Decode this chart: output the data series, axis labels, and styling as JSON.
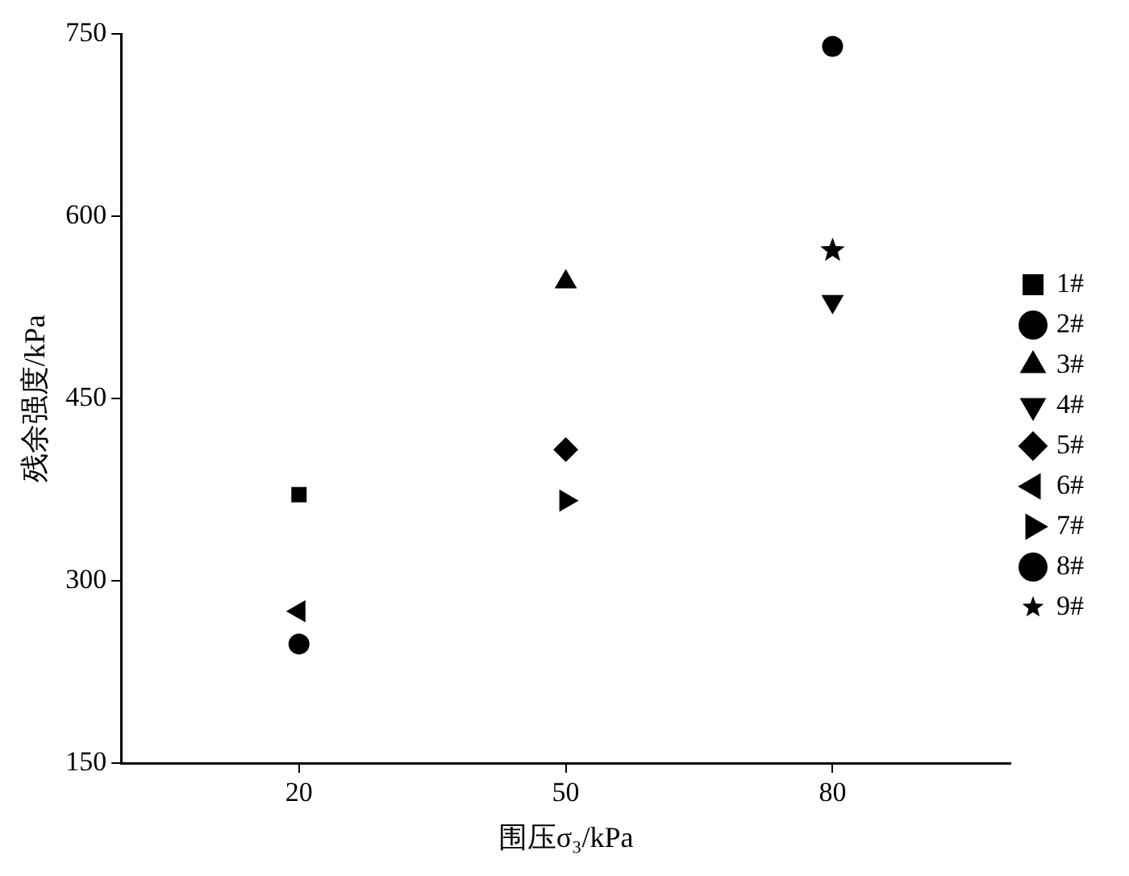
{
  "chart_data": {
    "type": "scatter",
    "xlabel": "围压σ₃/kPa",
    "ylabel": "残余强度/kPa",
    "xlim": [
      0,
      100
    ],
    "xticks": [
      20,
      50,
      80
    ],
    "ylim": [
      150,
      750
    ],
    "yticks": [
      150,
      300,
      450,
      600,
      750
    ],
    "grid": false,
    "legend": "right",
    "series": [
      {
        "name": "1#",
        "color": "#000000",
        "marker": "square",
        "x": [
          20
        ],
        "values": [
          371
        ]
      },
      {
        "name": "2#",
        "color": "#000000",
        "marker": "circle",
        "x": [
          80
        ],
        "values": [
          740
        ]
      },
      {
        "name": "3#",
        "color": "#000000",
        "marker": "triangle",
        "x": [
          50
        ],
        "values": [
          546
        ]
      },
      {
        "name": "4#",
        "color": "#000000",
        "marker": "triangle-down",
        "x": [
          80
        ],
        "values": [
          530
        ]
      },
      {
        "name": "5#",
        "color": "#000000",
        "marker": "diamond",
        "x": [
          50
        ],
        "values": [
          408
        ]
      },
      {
        "name": "6#",
        "color": "#000000",
        "marker": "triangle-left",
        "x": [
          20
        ],
        "values": [
          275
        ]
      },
      {
        "name": "7#",
        "color": "#000000",
        "marker": "triangle-right",
        "x": [
          50
        ],
        "values": [
          366
        ]
      },
      {
        "name": "8#",
        "color": "#000000",
        "marker": "circle",
        "x": [
          20
        ],
        "values": [
          248
        ]
      },
      {
        "name": "9#",
        "color": "#000000",
        "marker": "star",
        "x": [
          80
        ],
        "values": [
          572
        ]
      }
    ]
  }
}
